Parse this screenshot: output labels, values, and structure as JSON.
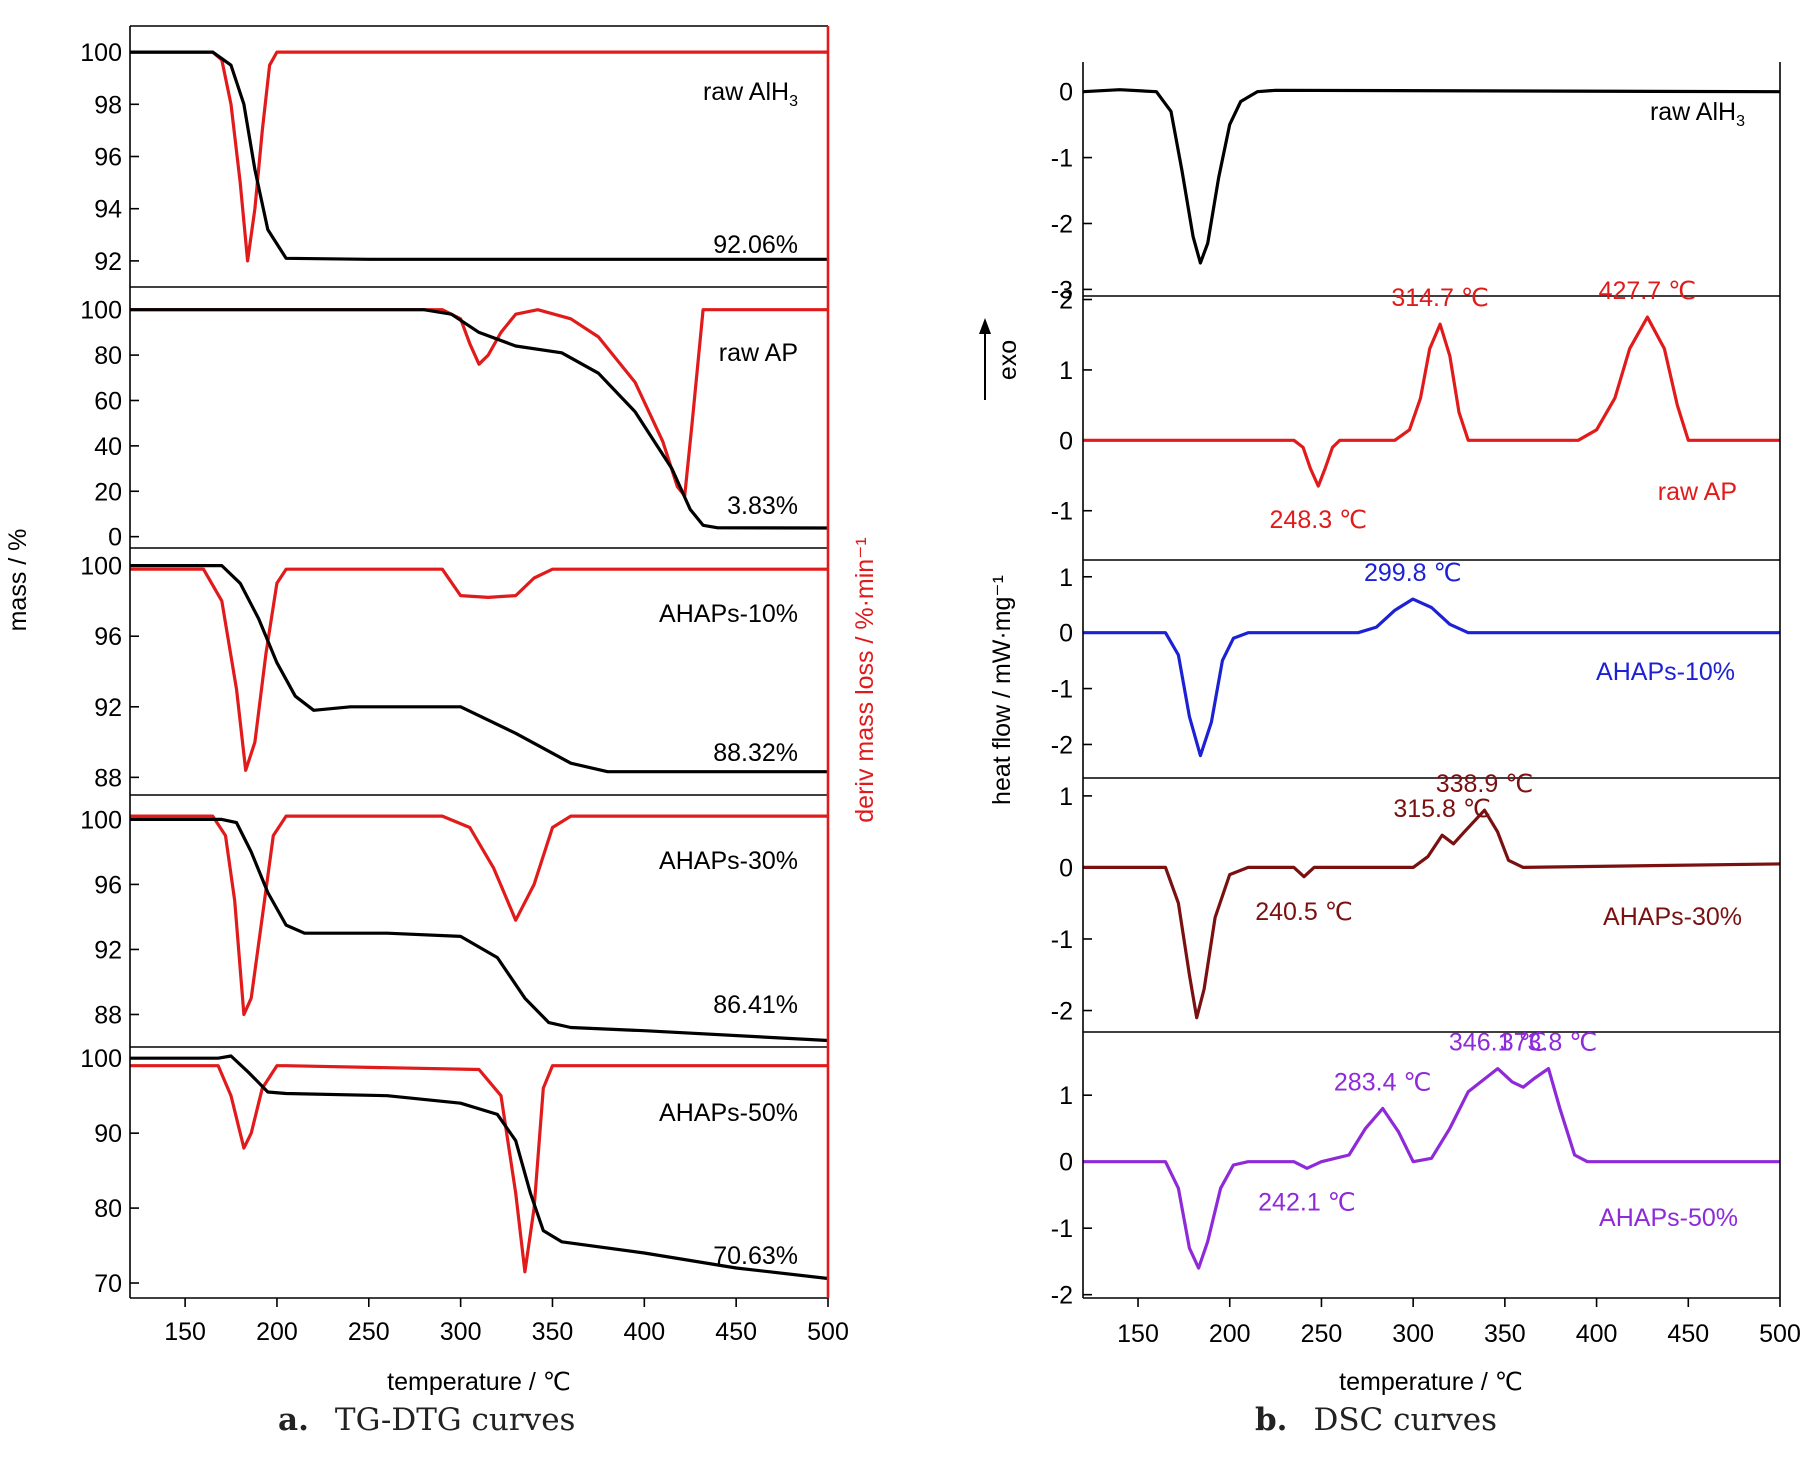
{
  "captions": {
    "a_letter": "a.",
    "a_text": "TG-DTG curves",
    "b_letter": "b.",
    "b_text": "DSC curves"
  },
  "colors": {
    "black": "#000000",
    "red": "#e11b1b",
    "blue": "#1c22d4",
    "darkred": "#7a1010",
    "purple": "#8e2ad8",
    "frame": "#e11b1b"
  },
  "chart_data": [
    {
      "type": "line",
      "title": "TG-DTG curves",
      "xlabel": "temperature / ℃",
      "ylabel": "mass / %",
      "y2label": "deriv mass loss / %·min⁻¹",
      "xlim": [
        120,
        500
      ],
      "xticks": [
        150,
        200,
        250,
        300,
        350,
        400,
        450,
        500
      ],
      "panels": [
        {
          "label": "raw AlH",
          "label_sub": "3",
          "annotation": "92.06%",
          "ylim": [
            91,
            101
          ],
          "yticks": [
            92,
            94,
            96,
            98,
            100
          ],
          "tg": {
            "x": [
              120,
              165,
              175,
              182,
              188,
              195,
              205,
              250,
              500
            ],
            "y": [
              100,
              100,
              99.5,
              98,
              95.5,
              93.2,
              92.1,
              92.06,
              92.06
            ]
          },
          "dtg": {
            "x": [
              120,
              165,
              170,
              175,
              180,
              184,
              188,
              192,
              196,
              200,
              500
            ],
            "y": [
              100,
              100,
              99.7,
              98,
              95,
              92,
              94,
              97,
              99.5,
              100,
              100
            ]
          }
        },
        {
          "label": "raw AP",
          "annotation": "3.83%",
          "ylim": [
            -5,
            110
          ],
          "yticks": [
            0,
            20,
            40,
            60,
            80,
            100
          ],
          "tg": {
            "x": [
              120,
              280,
              295,
              310,
              330,
              355,
              375,
              395,
              415,
              425,
              432,
              440,
              500
            ],
            "y": [
              100,
              100,
              98,
              90,
              84,
              81,
              72,
              55,
              30,
              12,
              5,
              3.9,
              3.83
            ]
          },
          "dtg": {
            "x": [
              120,
              290,
              300,
              305,
              310,
              315,
              322,
              330,
              342,
              360,
              375,
              395,
              410,
              418,
              422,
              426,
              432,
              500
            ],
            "y": [
              100,
              100,
              96,
              85,
              76,
              80,
              90,
              98,
              100,
              96,
              88,
              68,
              42,
              22,
              18,
              50,
              100,
              100
            ]
          }
        },
        {
          "label": "AHAPs-10%",
          "annotation": "88.32%",
          "ylim": [
            87,
            101
          ],
          "yticks": [
            88,
            92,
            96,
            100
          ],
          "tg": {
            "x": [
              120,
              170,
              180,
              190,
              200,
              210,
              220,
              240,
              300,
              330,
              360,
              380,
              500
            ],
            "y": [
              100,
              100,
              99,
              97,
              94.5,
              92.6,
              91.8,
              92,
              92,
              90.5,
              88.8,
              88.32,
              88.32
            ]
          },
          "dtg": {
            "x": [
              120,
              160,
              170,
              178,
              183,
              188,
              194,
              200,
              205,
              290,
              300,
              315,
              330,
              340,
              350,
              500
            ],
            "y": [
              99.8,
              99.8,
              98,
              93,
              88.4,
              90,
              95,
              99,
              99.8,
              99.8,
              98.3,
              98.2,
              98.3,
              99.3,
              99.8,
              99.8
            ]
          }
        },
        {
          "label": "AHAPs-30%",
          "annotation": "86.41%",
          "ylim": [
            86,
            101.5
          ],
          "yticks": [
            88,
            92,
            96,
            100
          ],
          "tg": {
            "x": [
              120,
              170,
              178,
              186,
              195,
              205,
              215,
              260,
              300,
              320,
              335,
              348,
              360,
              400,
              500
            ],
            "y": [
              100,
              100,
              99.8,
              98,
              95.5,
              93.5,
              93,
              93,
              92.8,
              91.5,
              89,
              87.5,
              87.2,
              87,
              86.4
            ]
          },
          "dtg": {
            "x": [
              120,
              165,
              172,
              177,
              182,
              186,
              192,
              198,
              205,
              290,
              305,
              318,
              330,
              340,
              350,
              360,
              500
            ],
            "y": [
              100.2,
              100.2,
              99,
              95,
              88,
              89,
              94,
              99,
              100.2,
              100.2,
              99.5,
              97,
              93.8,
              96,
              99.5,
              100.2,
              100.2
            ]
          }
        },
        {
          "label": "AHAPs-50%",
          "annotation": "70.63%",
          "ylim": [
            68,
            101.5
          ],
          "yticks": [
            70,
            80,
            90,
            100
          ],
          "tg": {
            "x": [
              120,
              168,
              175,
              185,
              195,
              205,
              260,
              300,
              320,
              330,
              338,
              345,
              355,
              400,
              450,
              500
            ],
            "y": [
              100,
              100,
              100.3,
              98,
              95.5,
              95.3,
              95,
              94,
              92.5,
              89,
              82,
              77,
              75.5,
              74,
              72,
              70.6
            ]
          },
          "dtg": {
            "x": [
              120,
              168,
              175,
              182,
              186,
              192,
              200,
              205,
              310,
              322,
              330,
              335,
              340,
              345,
              350,
              500
            ],
            "y": [
              99,
              99,
              95,
              88,
              90,
              96,
              99,
              99,
              98.5,
              95,
              82,
              71.5,
              80,
              96,
              99,
              99
            ]
          }
        }
      ]
    },
    {
      "type": "line",
      "title": "DSC curves",
      "xlabel": "temperature / ℃",
      "ylabel": "heat flow / mW·mg⁻¹",
      "exo_label": "exo",
      "xlim": [
        120,
        500
      ],
      "xticks": [
        150,
        200,
        250,
        300,
        350,
        400,
        450,
        500
      ],
      "panels": [
        {
          "label": "raw AlH",
          "label_sub": "3",
          "ylim": [
            -3.1,
            0.45
          ],
          "yticks": [
            0,
            -1,
            -2,
            -3
          ],
          "curve": {
            "x": [
              120,
              140,
              160,
              168,
              174,
              180,
              184,
              188,
              194,
              200,
              206,
              215,
              225,
              500
            ],
            "y": [
              0,
              0.03,
              0,
              -0.3,
              -1.2,
              -2.2,
              -2.6,
              -2.3,
              -1.3,
              -0.5,
              -0.15,
              0,
              0.02,
              0
            ]
          }
        },
        {
          "label": "raw AP",
          "ylim": [
            -1.7,
            2.05
          ],
          "yticks": [
            -1,
            0,
            1,
            2
          ],
          "annotations": [
            {
              "text": "314.7 ℃",
              "x": 314.7,
              "y": 1.65
            },
            {
              "text": "427.7 ℃",
              "x": 427.7,
              "y": 1.75
            },
            {
              "text": "248.3 ℃",
              "x": 248.3,
              "y": -0.65
            }
          ],
          "curve": {
            "x": [
              120,
              235,
              240,
              244,
              248.3,
              252,
              256,
              260,
              290,
              298,
              304,
              309,
              314.7,
              320,
              325,
              330,
              390,
              400,
              410,
              418,
              427.7,
              437,
              444,
              450,
              500
            ],
            "y": [
              0,
              0,
              -0.1,
              -0.4,
              -0.65,
              -0.4,
              -0.1,
              0,
              0,
              0.15,
              0.6,
              1.3,
              1.65,
              1.2,
              0.4,
              0,
              0,
              0.15,
              0.6,
              1.3,
              1.75,
              1.3,
              0.5,
              0,
              0
            ]
          }
        },
        {
          "label": "AHAPs-10%",
          "ylim": [
            -2.6,
            1.3
          ],
          "yticks": [
            1,
            0,
            -1,
            -2
          ],
          "annotations": [
            {
              "text": "299.8 ℃",
              "x": 299.8,
              "y": 0.6
            }
          ],
          "curve": {
            "x": [
              120,
              165,
              172,
              178,
              184,
              190,
              196,
              202,
              210,
              270,
              280,
              290,
              299.8,
              310,
              320,
              330,
              500
            ],
            "y": [
              0,
              0,
              -0.4,
              -1.5,
              -2.2,
              -1.6,
              -0.5,
              -0.1,
              0,
              0,
              0.1,
              0.4,
              0.6,
              0.45,
              0.15,
              0,
              0
            ]
          }
        },
        {
          "label": "AHAPs-30%",
          "ylim": [
            -2.3,
            1.25
          ],
          "yticks": [
            1,
            0,
            -1,
            -2
          ],
          "annotations": [
            {
              "text": "315.8 ℃",
              "x": 315.8,
              "y": 0.45
            },
            {
              "text": "338.9 ℃",
              "x": 338.9,
              "y": 0.8
            },
            {
              "text": "240.5 ℃",
              "x": 240.5,
              "y": -0.15
            }
          ],
          "curve": {
            "x": [
              120,
              165,
              172,
              178,
              182,
              186,
              192,
              200,
              210,
              235,
              240.5,
              246,
              300,
              308,
              315.8,
              322,
              328,
              338.9,
              346,
              352,
              360,
              500
            ],
            "y": [
              0,
              0,
              -0.5,
              -1.5,
              -2.1,
              -1.7,
              -0.7,
              -0.1,
              0,
              0,
              -0.13,
              0,
              0,
              0.15,
              0.45,
              0.33,
              0.5,
              0.8,
              0.5,
              0.1,
              0,
              0.05
            ]
          }
        },
        {
          "label": "AHAPs-50%",
          "ylim": [
            -2.05,
            1.95
          ],
          "yticks": [
            1,
            0,
            -1,
            -2
          ],
          "annotations": [
            {
              "text": "283.4 ℃",
              "x": 283.4,
              "y": 0.8
            },
            {
              "text": "346.1 ℃",
              "x": 346.1,
              "y": 1.4
            },
            {
              "text": "373.8 ℃",
              "x": 373.8,
              "y": 1.4
            },
            {
              "text": "242.1 ℃",
              "x": 242.1,
              "y": -0.1
            }
          ],
          "curve": {
            "x": [
              120,
              165,
              172,
              178,
              183,
              188,
              195,
              202,
              210,
              235,
              242.1,
              250,
              265,
              274,
              283.4,
              292,
              300,
              310,
              320,
              330,
              346.1,
              354,
              360,
              366,
              373.8,
              380,
              388,
              395,
              500
            ],
            "y": [
              0,
              0,
              -0.4,
              -1.3,
              -1.6,
              -1.2,
              -0.4,
              -0.05,
              0,
              0,
              -0.1,
              0,
              0.1,
              0.5,
              0.8,
              0.45,
              0,
              0.05,
              0.5,
              1.05,
              1.4,
              1.2,
              1.12,
              1.25,
              1.4,
              0.8,
              0.1,
              0,
              0
            ]
          }
        }
      ]
    }
  ]
}
